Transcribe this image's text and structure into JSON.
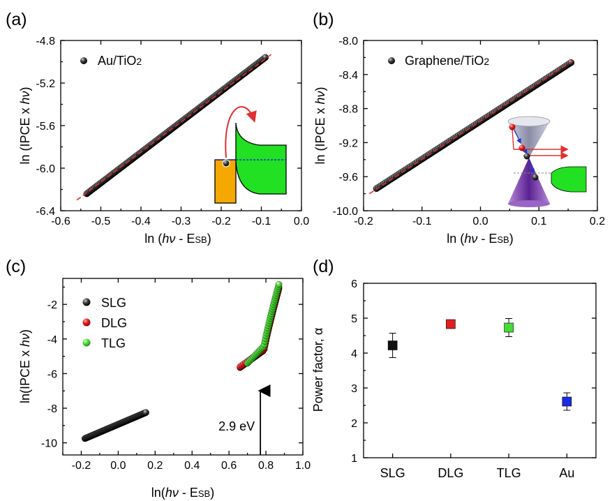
{
  "colors": {
    "point": "#111111",
    "fit_line": "#e03030",
    "dlg": "#e02020",
    "tlg": "#44dd33",
    "au": "#1a2be6",
    "inset_metal": "#f5a800",
    "inset_semi": "#22e022",
    "inset_cone": "#7a40b0"
  },
  "chart_data": [
    {
      "panel": "(a)",
      "type": "scatter",
      "xlabel_pre": "ln (",
      "xlabel_italic": "hν",
      "xlabel_mid": " - E",
      "xlabel_sub": "SB",
      "xlabel_post": ")",
      "ylabel_pre": "ln (IPCE x ",
      "ylabel_italic": "hν",
      "ylabel_post": ")",
      "xlim": [
        -0.6,
        0.0
      ],
      "ylim": [
        -6.4,
        -4.8
      ],
      "xticks": [
        "-0.6",
        "-0.5",
        "-0.4",
        "-0.3",
        "-0.2",
        "-0.1",
        "0.0"
      ],
      "yticks": [
        "-6.4",
        "-6.0",
        "-5.6",
        "-5.2",
        "-4.8"
      ],
      "legend": [
        "Au/TiO2"
      ],
      "series": [
        {
          "name": "Au/TiO2",
          "x_range": [
            -0.535,
            -0.09
          ],
          "y_range": [
            -6.24,
            -4.96
          ]
        }
      ],
      "fit": {
        "x": [
          -0.56,
          -0.075
        ],
        "y": [
          -6.3,
          -4.93
        ]
      },
      "legend_position": "top-left",
      "inset": "Au/TiO2 band diagram"
    },
    {
      "panel": "(b)",
      "type": "scatter",
      "xlabel_pre": "ln (",
      "xlabel_italic": "hν",
      "xlabel_mid": " - E",
      "xlabel_sub": "SB",
      "xlabel_post": ")",
      "ylabel_pre": "ln (IPCE x ",
      "ylabel_italic": "hν",
      "ylabel_post": ")",
      "xlim": [
        -0.2,
        0.2
      ],
      "ylim": [
        -10.0,
        -8.0
      ],
      "xticks": [
        "-0.2",
        "-0.1",
        "0.0",
        "0.1",
        "0.2"
      ],
      "yticks": [
        "-10.0",
        "-9.6",
        "-9.2",
        "-8.8",
        "-8.4",
        "-8.0"
      ],
      "legend": [
        "Graphene/TiO2"
      ],
      "series": [
        {
          "name": "Graphene/TiO2",
          "x_range": [
            -0.178,
            0.155
          ],
          "y_range": [
            -9.74,
            -8.26
          ]
        }
      ],
      "fit": {
        "x": [
          -0.19,
          0.162
        ],
        "y": [
          -9.8,
          -8.22
        ]
      },
      "legend_position": "top-left",
      "inset": "Graphene Dirac cone band diagram"
    },
    {
      "panel": "(c)",
      "type": "scatter",
      "xlabel_pre": "ln(",
      "xlabel_italic": "hν",
      "xlabel_mid": " - E",
      "xlabel_sub": "SB",
      "xlabel_post": ")",
      "ylabel_pre": "ln(IPCE x ",
      "ylabel_italic": "hν",
      "ylabel_post": ")",
      "xlim": [
        -0.3,
        1.0
      ],
      "ylim": [
        -10.7,
        -0.5
      ],
      "xticks": [
        "-0.2",
        "0.0",
        "0.2",
        "0.4",
        "0.6",
        "0.8",
        "1.0"
      ],
      "yticks": [
        "-10",
        "-8",
        "-6",
        "-4",
        "-2"
      ],
      "legend": [
        "SLG",
        "DLG",
        "TLG"
      ],
      "series": [
        {
          "name": "SLG",
          "low_x": [
            -0.18,
            0.15
          ],
          "low_y": [
            -9.75,
            -8.25
          ],
          "high_x": [
            0.66,
            0.87
          ],
          "high_y": [
            -5.65,
            -1.1
          ]
        },
        {
          "name": "DLG",
          "x_range": [
            0.66,
            0.87
          ],
          "y_range": [
            -5.6,
            -1.0
          ]
        },
        {
          "name": "TLG",
          "x_range": [
            0.7,
            0.87
          ],
          "y_range": [
            -5.4,
            -0.85
          ]
        }
      ],
      "annotation": "2.9 eV",
      "annotation_x": 0.77,
      "legend_position": "top-left"
    },
    {
      "panel": "(d)",
      "type": "scatter",
      "ylabel": "Power factor, α",
      "categories": [
        "SLG",
        "DLG",
        "TLG",
        "Au"
      ],
      "values": [
        4.22,
        4.83,
        4.73,
        2.61
      ],
      "errors": [
        0.35,
        0.0,
        0.26,
        0.25
      ],
      "ylim": [
        1,
        6
      ],
      "yticks": [
        "1",
        "2",
        "3",
        "4",
        "5",
        "6"
      ]
    }
  ]
}
